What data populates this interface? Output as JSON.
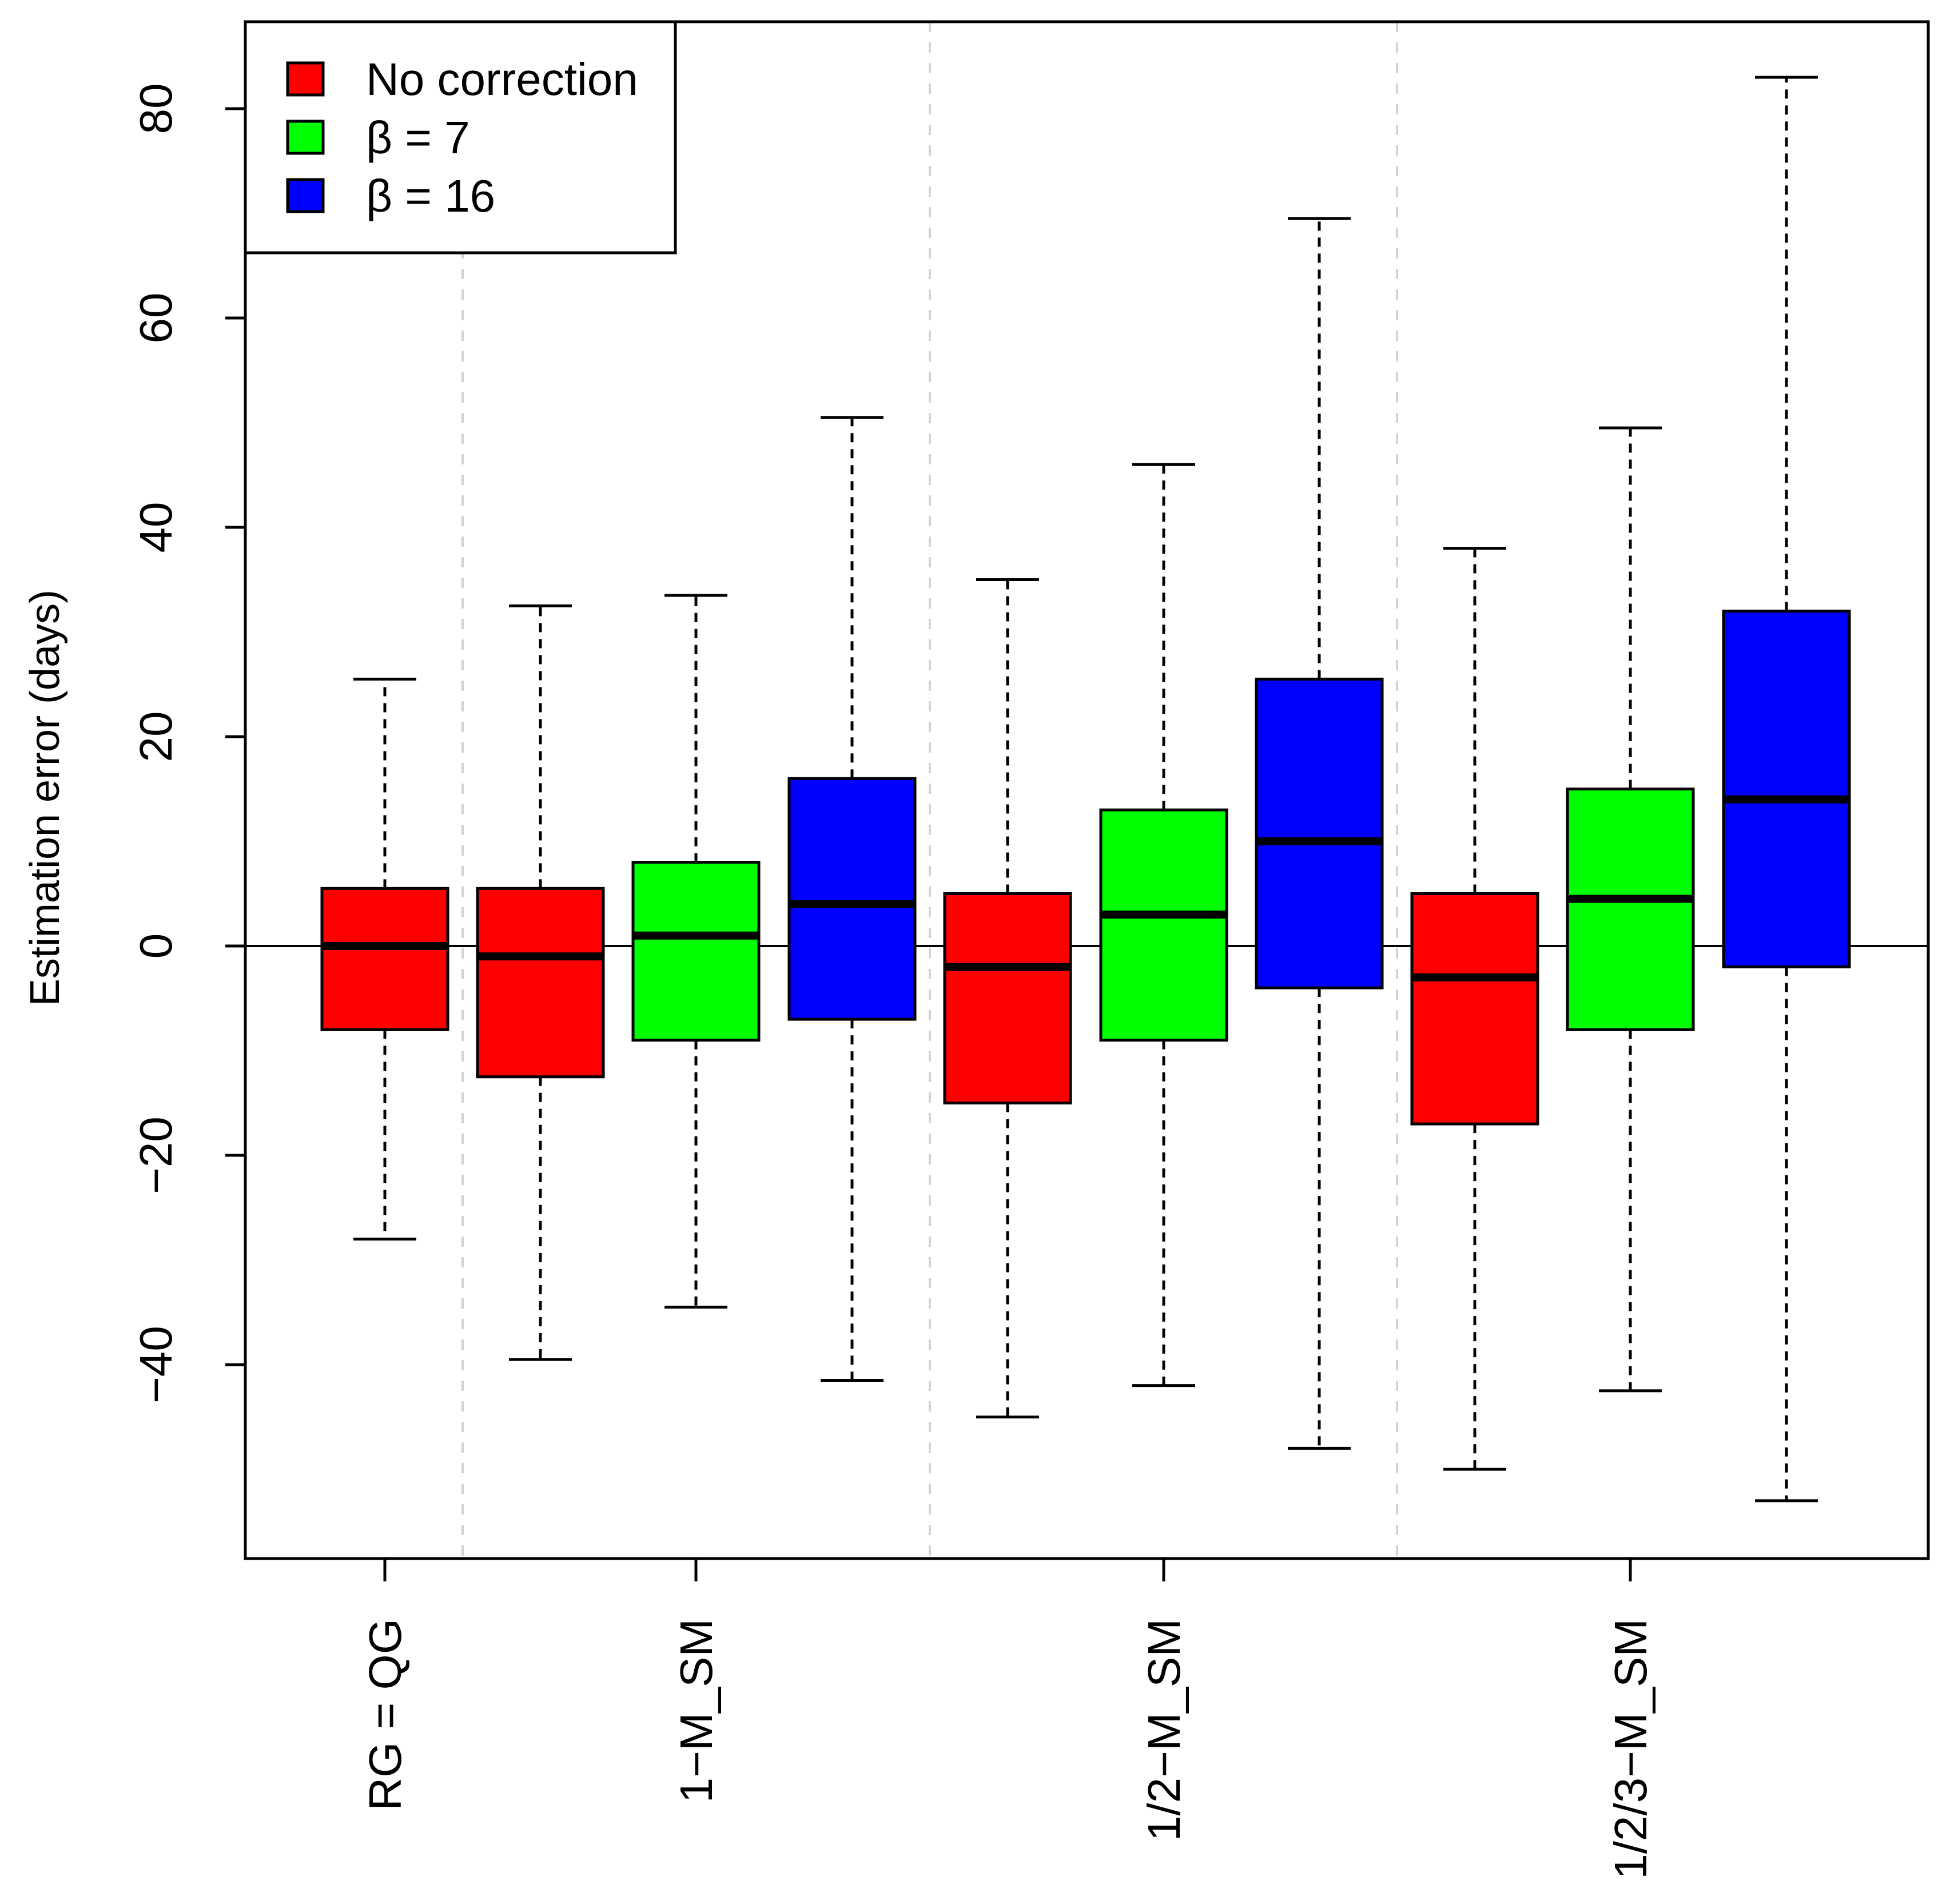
{
  "chart_data": {
    "type": "box",
    "ylabel": "Estimation error (days)",
    "xlabel": "",
    "ylim": [
      -57,
      88
    ],
    "yticks": [
      -40,
      -20,
      0,
      20,
      40,
      60,
      80
    ],
    "reference_line_y": 0,
    "groups": [
      {
        "label": "RG = QG",
        "series": [
          "No correction"
        ]
      },
      {
        "label": "1−M_SM",
        "series": [
          "No correction",
          "β = 7",
          "β = 16"
        ]
      },
      {
        "label": "1/2−M_SM",
        "series": [
          "No correction",
          "β = 7",
          "β = 16"
        ]
      },
      {
        "label": "1/2/3−M_SM",
        "series": [
          "No correction",
          "β = 7",
          "β = 16"
        ]
      }
    ],
    "legend": {
      "position": "top-left",
      "entries": [
        {
          "name": "No correction",
          "color": "#ff0000"
        },
        {
          "name": "β = 7",
          "color": "#00ff00"
        },
        {
          "name": "β = 16",
          "color": "#0000ff"
        }
      ]
    },
    "boxes": [
      {
        "group": "RG = QG",
        "series": "No correction",
        "whisker_low": -28,
        "q1": -8,
        "median": 0,
        "q3": 5.5,
        "whisker_high": 25.5
      },
      {
        "group": "1−M_SM",
        "series": "No correction",
        "whisker_low": -39.5,
        "q1": -12.5,
        "median": -1,
        "q3": 5.5,
        "whisker_high": 32.5
      },
      {
        "group": "1−M_SM",
        "series": "β = 7",
        "whisker_low": -34.5,
        "q1": -9,
        "median": 1,
        "q3": 8,
        "whisker_high": 33.5
      },
      {
        "group": "1−M_SM",
        "series": "β = 16",
        "whisker_low": -41.5,
        "q1": -7,
        "median": 4,
        "q3": 16,
        "whisker_high": 50.5
      },
      {
        "group": "1/2−M_SM",
        "series": "No correction",
        "whisker_low": -45,
        "q1": -15,
        "median": -2,
        "q3": 5,
        "whisker_high": 35
      },
      {
        "group": "1/2−M_SM",
        "series": "β = 7",
        "whisker_low": -42,
        "q1": -9,
        "median": 3,
        "q3": 13,
        "whisker_high": 46
      },
      {
        "group": "1/2−M_SM",
        "series": "β = 16",
        "whisker_low": -48,
        "q1": -4,
        "median": 10,
        "q3": 25.5,
        "whisker_high": 69.5
      },
      {
        "group": "1/2/3−M_SM",
        "series": "No correction",
        "whisker_low": -50,
        "q1": -17,
        "median": -3,
        "q3": 5,
        "whisker_high": 38
      },
      {
        "group": "1/2/3−M_SM",
        "series": "β = 7",
        "whisker_low": -42.5,
        "q1": -8,
        "median": 4.5,
        "q3": 15,
        "whisker_high": 49.5
      },
      {
        "group": "1/2/3−M_SM",
        "series": "β = 16",
        "whisker_low": -53,
        "q1": -2,
        "median": 14,
        "q3": 32,
        "whisker_high": 83
      }
    ]
  }
}
